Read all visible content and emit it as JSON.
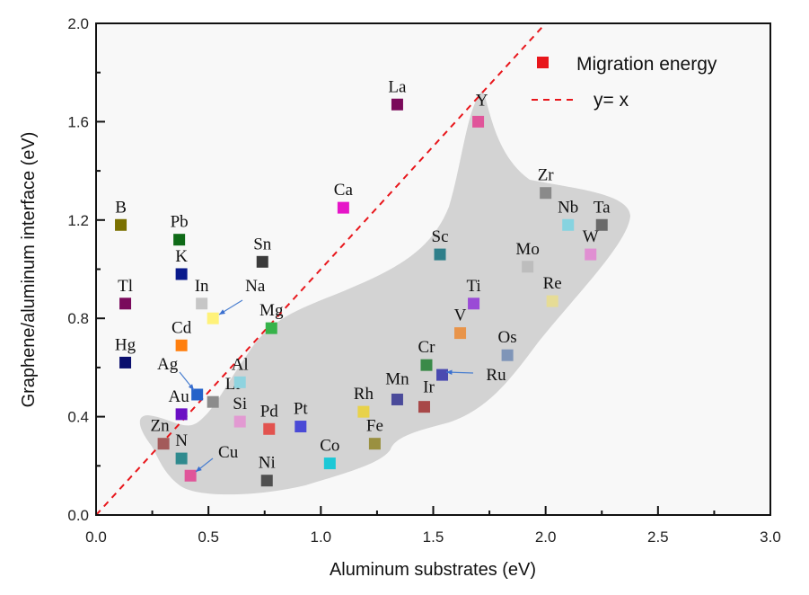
{
  "chart_data": {
    "type": "scatter",
    "xlabel": "Aluminum substrates (eV)",
    "ylabel": "Graphene/aluminum interface (eV)",
    "xlim": [
      0.0,
      3.0
    ],
    "ylim": [
      0.0,
      2.0
    ],
    "xticks": [
      "0.0",
      "0.5",
      "1.0",
      "1.5",
      "2.0",
      "2.5",
      "3.0"
    ],
    "yticks": [
      "0.0",
      "0.4",
      "0.8",
      "1.2",
      "1.6",
      "2.0"
    ],
    "x_minor_step": 0.25,
    "y_minor_step": 0.2,
    "grid": false,
    "legend": {
      "position": "top-right",
      "entries": [
        {
          "label": "Migration energy",
          "marker": "square",
          "color": "#e8161b"
        },
        {
          "label": "y= x",
          "marker": "dashed-line",
          "color": "#e8161b"
        }
      ]
    },
    "reference_line": {
      "label": "y= x",
      "slope": 1,
      "intercept": 0,
      "color": "#e8161b",
      "style": "dashed"
    },
    "shaded_region_color": "#d3d3d3",
    "plot_background": "#f8f8f8",
    "series": [
      {
        "name": "Migration energy",
        "points": [
          {
            "label": "B",
            "x": 0.11,
            "y": 1.18,
            "color": "#7a7000"
          },
          {
            "label": "Pb",
            "x": 0.37,
            "y": 1.12,
            "color": "#0f6a17"
          },
          {
            "label": "K",
            "x": 0.38,
            "y": 0.98,
            "color": "#0a1a8c"
          },
          {
            "label": "Sn",
            "x": 0.74,
            "y": 1.03,
            "color": "#3b3b3b"
          },
          {
            "label": "Tl",
            "x": 0.13,
            "y": 0.86,
            "color": "#7a0a5c"
          },
          {
            "label": "In",
            "x": 0.47,
            "y": 0.86,
            "color": "#c6c6c6"
          },
          {
            "label": "Na",
            "x": 0.52,
            "y": 0.8,
            "color": "#fff27a"
          },
          {
            "label": "Cd",
            "x": 0.38,
            "y": 0.69,
            "color": "#ff7f0e"
          },
          {
            "label": "Hg",
            "x": 0.13,
            "y": 0.62,
            "color": "#0a0f6e"
          },
          {
            "label": "Ag",
            "x": 0.45,
            "y": 0.49,
            "color": "#2462c9"
          },
          {
            "label": "Li",
            "x": 0.52,
            "y": 0.46,
            "color": "#8c8c8c"
          },
          {
            "label": "Al",
            "x": 0.64,
            "y": 0.54,
            "color": "#8fd3df"
          },
          {
            "label": "Au",
            "x": 0.38,
            "y": 0.41,
            "color": "#6a0fc4"
          },
          {
            "label": "Si",
            "x": 0.64,
            "y": 0.38,
            "color": "#e29ad2"
          },
          {
            "label": "Pd",
            "x": 0.77,
            "y": 0.35,
            "color": "#e2534f"
          },
          {
            "label": "Zn",
            "x": 0.3,
            "y": 0.29,
            "color": "#a35a5a"
          },
          {
            "label": "N",
            "x": 0.38,
            "y": 0.23,
            "color": "#2f8a8e"
          },
          {
            "label": "Cu",
            "x": 0.42,
            "y": 0.16,
            "color": "#e0559a"
          },
          {
            "label": "Ni",
            "x": 0.76,
            "y": 0.14,
            "color": "#4f4f4f"
          },
          {
            "label": "Mg",
            "x": 0.78,
            "y": 0.76,
            "color": "#37b34a"
          },
          {
            "label": "Ca",
            "x": 1.1,
            "y": 1.25,
            "color": "#e615c8"
          },
          {
            "label": "La",
            "x": 1.34,
            "y": 1.67,
            "color": "#7a0a5a"
          },
          {
            "label": "Y",
            "x": 1.7,
            "y": 1.6,
            "color": "#e0559a"
          },
          {
            "label": "Sc",
            "x": 1.53,
            "y": 1.06,
            "color": "#2f7f8a"
          },
          {
            "label": "Pt",
            "x": 0.91,
            "y": 0.36,
            "color": "#4a4ad6"
          },
          {
            "label": "Co",
            "x": 1.04,
            "y": 0.21,
            "color": "#1cc8d6"
          },
          {
            "label": "Rh",
            "x": 1.19,
            "y": 0.42,
            "color": "#e8d24a"
          },
          {
            "label": "Fe",
            "x": 1.24,
            "y": 0.29,
            "color": "#9a9040"
          },
          {
            "label": "Mn",
            "x": 1.34,
            "y": 0.47,
            "color": "#4a4a9a"
          },
          {
            "label": "Ir",
            "x": 1.46,
            "y": 0.44,
            "color": "#a84848"
          },
          {
            "label": "Cr",
            "x": 1.47,
            "y": 0.61,
            "color": "#3a8a48"
          },
          {
            "label": "Ru",
            "x": 1.54,
            "y": 0.57,
            "color": "#4a4ab0"
          },
          {
            "label": "V",
            "x": 1.62,
            "y": 0.74,
            "color": "#e8944a"
          },
          {
            "label": "Ti",
            "x": 1.68,
            "y": 0.86,
            "color": "#9a4ad6"
          },
          {
            "label": "Os",
            "x": 1.83,
            "y": 0.65,
            "color": "#7f95b8"
          },
          {
            "label": "Mo",
            "x": 1.92,
            "y": 1.01,
            "color": "#bdbdbd"
          },
          {
            "label": "Zr",
            "x": 2.0,
            "y": 1.31,
            "color": "#8a8a8a"
          },
          {
            "label": "Re",
            "x": 2.03,
            "y": 0.87,
            "color": "#e6dc96"
          },
          {
            "label": "Nb",
            "x": 2.1,
            "y": 1.18,
            "color": "#86d3e0"
          },
          {
            "label": "W",
            "x": 2.2,
            "y": 1.06,
            "color": "#e08fd2"
          },
          {
            "label": "Ta",
            "x": 2.25,
            "y": 1.18,
            "color": "#6a6a6a"
          }
        ]
      }
    ]
  }
}
